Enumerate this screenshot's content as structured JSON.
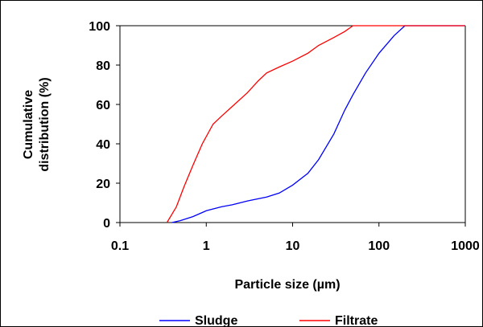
{
  "chart_data": {
    "type": "line",
    "xscale": "log",
    "xlim": [
      0.1,
      1000
    ],
    "ylim": [
      0,
      100
    ],
    "xticks": [
      "0.1",
      "1",
      "10",
      "100",
      "1000"
    ],
    "yticks": [
      "0",
      "20",
      "40",
      "60",
      "80",
      "100"
    ],
    "xticks_values": [
      0.1,
      1,
      10,
      100,
      1000
    ],
    "yticks_values": [
      0,
      20,
      40,
      60,
      80,
      100
    ],
    "xlabel": "Particle size (µm)",
    "ylabel_lines": [
      "Cumulative",
      "distribution (%)"
    ],
    "grid": false,
    "legend_position": "bottom",
    "series": [
      {
        "name": "Sludge",
        "color": "#0000ff",
        "points": [
          [
            0.4,
            0
          ],
          [
            0.5,
            1
          ],
          [
            0.7,
            3
          ],
          [
            1,
            6
          ],
          [
            1.5,
            8
          ],
          [
            2,
            9
          ],
          [
            3,
            11
          ],
          [
            5,
            13
          ],
          [
            7,
            15
          ],
          [
            10,
            19
          ],
          [
            15,
            25
          ],
          [
            20,
            32
          ],
          [
            30,
            45
          ],
          [
            40,
            57
          ],
          [
            50,
            65
          ],
          [
            70,
            76
          ],
          [
            100,
            86
          ],
          [
            150,
            95
          ],
          [
            200,
            100
          ],
          [
            1000,
            100
          ]
        ]
      },
      {
        "name": "Filtrate",
        "color": "#ff0000",
        "points": [
          [
            0.35,
            0
          ],
          [
            0.45,
            8
          ],
          [
            0.55,
            18
          ],
          [
            0.7,
            29
          ],
          [
            0.9,
            40
          ],
          [
            1.2,
            50
          ],
          [
            1.5,
            54
          ],
          [
            2,
            59
          ],
          [
            3,
            66
          ],
          [
            4,
            72
          ],
          [
            5,
            76
          ],
          [
            7,
            79
          ],
          [
            10,
            82
          ],
          [
            15,
            86
          ],
          [
            20,
            90
          ],
          [
            30,
            94
          ],
          [
            40,
            97
          ],
          [
            50,
            100
          ],
          [
            1000,
            100
          ]
        ]
      }
    ]
  }
}
